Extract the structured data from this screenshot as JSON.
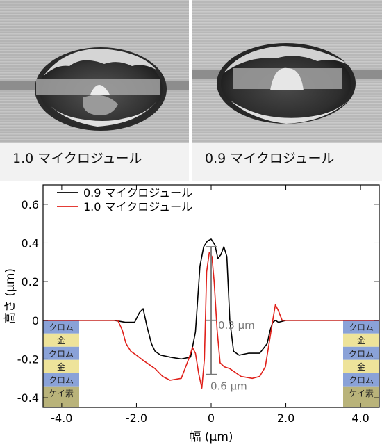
{
  "images": [
    {
      "caption": "1.0 マイクロジュール"
    },
    {
      "caption": "0.9 マイクロジュール"
    }
  ],
  "chart_data": {
    "type": "line",
    "xlabel": "幅 (µm)",
    "ylabel": "高さ (µm)",
    "xlim": [
      -4.5,
      4.5
    ],
    "ylim": [
      -0.45,
      0.7
    ],
    "xticks": [
      "-4.0",
      "-2.0",
      "0",
      "2.0",
      "4.0"
    ],
    "yticks": [
      "0.6",
      "0.4",
      "0.2",
      "0",
      "-0.2",
      "-0.4"
    ],
    "legend_position": "top-left",
    "series": [
      {
        "name": "0.9 マイクロジュール",
        "color": "#000000",
        "x": [
          -4.5,
          -3.5,
          -2.6,
          -2.3,
          -2.05,
          -1.92,
          -1.82,
          -1.72,
          -1.6,
          -1.5,
          -1.35,
          -1.1,
          -0.8,
          -0.55,
          -0.42,
          -0.3,
          -0.2,
          -0.1,
          0.0,
          0.1,
          0.18,
          0.26,
          0.34,
          0.42,
          0.5,
          0.6,
          0.75,
          1.0,
          1.3,
          1.5,
          1.58,
          1.65,
          1.72,
          1.8,
          2.0,
          2.5,
          3.5,
          4.5
        ],
        "y": [
          0.0,
          0.0,
          0.0,
          -0.01,
          -0.01,
          0.04,
          0.06,
          -0.03,
          -0.12,
          -0.16,
          -0.18,
          -0.19,
          -0.2,
          -0.19,
          -0.06,
          0.28,
          0.38,
          0.41,
          0.42,
          0.39,
          0.32,
          0.34,
          0.38,
          0.33,
          0.0,
          -0.16,
          -0.18,
          -0.17,
          -0.17,
          -0.12,
          -0.05,
          -0.01,
          0.0,
          -0.01,
          0.0,
          0.0,
          0.0,
          0.0
        ]
      },
      {
        "name": "1.0 マイクロジュール",
        "color": "#e0201a",
        "x": [
          -4.5,
          -3.5,
          -2.7,
          -2.5,
          -2.38,
          -2.28,
          -2.15,
          -2.0,
          -1.8,
          -1.5,
          -1.3,
          -1.1,
          -0.8,
          -0.6,
          -0.5,
          -0.42,
          -0.33,
          -0.25,
          -0.18,
          -0.12,
          -0.05,
          0.02,
          0.08,
          0.16,
          0.24,
          0.35,
          0.5,
          0.8,
          1.1,
          1.3,
          1.45,
          1.55,
          1.65,
          1.72,
          1.8,
          1.9,
          2.1,
          2.5,
          3.5,
          4.5
        ],
        "y": [
          0.0,
          0.0,
          0.0,
          0.0,
          -0.05,
          -0.12,
          -0.16,
          -0.18,
          -0.21,
          -0.25,
          -0.29,
          -0.31,
          -0.3,
          -0.2,
          -0.14,
          -0.17,
          -0.28,
          -0.35,
          -0.2,
          0.25,
          0.35,
          0.33,
          0.2,
          -0.05,
          -0.22,
          -0.24,
          -0.25,
          -0.29,
          -0.3,
          -0.29,
          -0.24,
          -0.12,
          0.0,
          0.08,
          0.05,
          0.0,
          0.0,
          0.0,
          0.0,
          0.0
        ]
      }
    ],
    "annotations": [
      {
        "text": "0.3 µm",
        "x": 0.0,
        "y_from": 0.0,
        "y_to": 0.0
      },
      {
        "text": "0.6 µm",
        "x": 0.0,
        "y_from": 0.38,
        "y_to": -0.28
      }
    ],
    "layer_stack": [
      "クロム",
      "金",
      "クロム",
      "金",
      "クロム",
      "ケイ素"
    ],
    "layer_colors": [
      "#8aa2d8",
      "#eee39a",
      "#8aa2d8",
      "#eee39a",
      "#8aa2d8",
      "#b9b37a"
    ]
  }
}
